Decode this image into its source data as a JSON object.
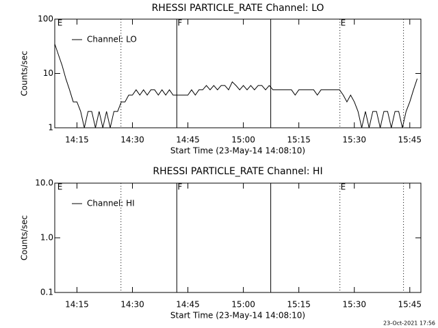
{
  "chart_data": [
    {
      "type": "line",
      "title": "RHESSI PARTICLE_RATE Channel: LO",
      "x_label": "Start Time (23-May-14 14:08:10)",
      "y_label": "Counts/sec",
      "log_y": true,
      "legend": "upper left",
      "xlim": [
        849,
        948
      ],
      "xticks": [
        {
          "value": 855,
          "label": "14:15"
        },
        {
          "value": 870,
          "label": "14:30"
        },
        {
          "value": 885,
          "label": "14:45"
        },
        {
          "value": 900,
          "label": "15:00"
        },
        {
          "value": 915,
          "label": "15:15"
        },
        {
          "value": 930,
          "label": "15:30"
        },
        {
          "value": 945,
          "label": "15:45"
        }
      ],
      "ylim": [
        1,
        100
      ],
      "yticks": [
        1,
        10,
        100
      ],
      "vlines": [
        {
          "x": 866.9,
          "style": "dotted"
        },
        {
          "x": 882,
          "style": "solid"
        },
        {
          "x": 907.4,
          "style": "solid"
        },
        {
          "x": 926.1,
          "style": "dotted"
        },
        {
          "x": 943.3,
          "style": "dotted"
        }
      ],
      "annotations": [
        {
          "x": 849.5,
          "label": "E"
        },
        {
          "x": 882,
          "label": "F"
        },
        {
          "x": 926.1,
          "label": "E"
        }
      ],
      "series": [
        {
          "name": "Channel: LO",
          "color": "#000000",
          "x": [
            849,
            850,
            851,
            852,
            853,
            854,
            855,
            856,
            857,
            858,
            859,
            860,
            861,
            862,
            863,
            864,
            865,
            866,
            867,
            868,
            869,
            870,
            871,
            872,
            873,
            874,
            875,
            876,
            877,
            878,
            879,
            880,
            881,
            882,
            883,
            884,
            885,
            886,
            887,
            888,
            889,
            890,
            891,
            892,
            893,
            894,
            895,
            896,
            897,
            898,
            899,
            900,
            901,
            902,
            903,
            904,
            905,
            906,
            907,
            908,
            909,
            910,
            911,
            912,
            913,
            914,
            915,
            916,
            917,
            918,
            919,
            920,
            921,
            922,
            923,
            924,
            925,
            926,
            927,
            928,
            929,
            930,
            931,
            932,
            933,
            934,
            935,
            936,
            937,
            938,
            939,
            940,
            941,
            942,
            943,
            944,
            945,
            946,
            947
          ],
          "values": [
            35,
            22,
            14,
            8,
            5,
            3,
            3,
            2,
            1,
            2,
            2,
            1,
            2,
            1,
            2,
            1,
            2,
            2,
            3,
            3,
            4,
            4,
            5,
            4,
            5,
            4,
            5,
            5,
            4,
            5,
            4,
            5,
            4,
            4,
            4,
            4,
            4,
            5,
            4,
            5,
            5,
            6,
            5,
            6,
            5,
            6,
            6,
            5,
            7,
            6,
            5,
            6,
            5,
            6,
            5,
            6,
            6,
            5,
            6,
            5,
            5,
            5,
            5,
            5,
            5,
            4,
            5,
            5,
            5,
            5,
            5,
            4,
            5,
            5,
            5,
            5,
            5,
            5,
            4,
            3,
            4,
            3,
            2,
            1,
            2,
            1,
            2,
            2,
            1,
            2,
            2,
            1,
            2,
            2,
            1,
            2,
            3,
            5,
            8
          ]
        }
      ]
    },
    {
      "type": "line",
      "title": "RHESSI PARTICLE_RATE Channel: HI",
      "x_label": "Start Time (23-May-14 14:08:10)",
      "y_label": "Counts/sec",
      "log_y": true,
      "legend": "upper left",
      "xlim": [
        849,
        948
      ],
      "xticks": [
        {
          "value": 855,
          "label": "14:15"
        },
        {
          "value": 870,
          "label": "14:30"
        },
        {
          "value": 885,
          "label": "14:45"
        },
        {
          "value": 900,
          "label": "15:00"
        },
        {
          "value": 915,
          "label": "15:15"
        },
        {
          "value": 930,
          "label": "15:30"
        },
        {
          "value": 945,
          "label": "15:45"
        }
      ],
      "ylim": [
        0.1,
        10
      ],
      "yticks": [
        0.1,
        {
          "value": 1,
          "label": "1.0"
        },
        {
          "value": 10,
          "label": "10.0"
        }
      ],
      "vlines": [
        {
          "x": 866.9,
          "style": "dotted"
        },
        {
          "x": 882,
          "style": "solid"
        },
        {
          "x": 907.4,
          "style": "solid"
        },
        {
          "x": 926.1,
          "style": "dotted"
        },
        {
          "x": 943.3,
          "style": "dotted"
        }
      ],
      "annotations": [
        {
          "x": 849.5,
          "label": "E"
        },
        {
          "x": 882,
          "label": "F"
        },
        {
          "x": 926.1,
          "label": "E"
        }
      ],
      "series": [
        {
          "name": "Channel: HI",
          "color": "#000000",
          "x": [],
          "values": []
        }
      ]
    }
  ],
  "footer": "23-Oct-2021 17:56"
}
